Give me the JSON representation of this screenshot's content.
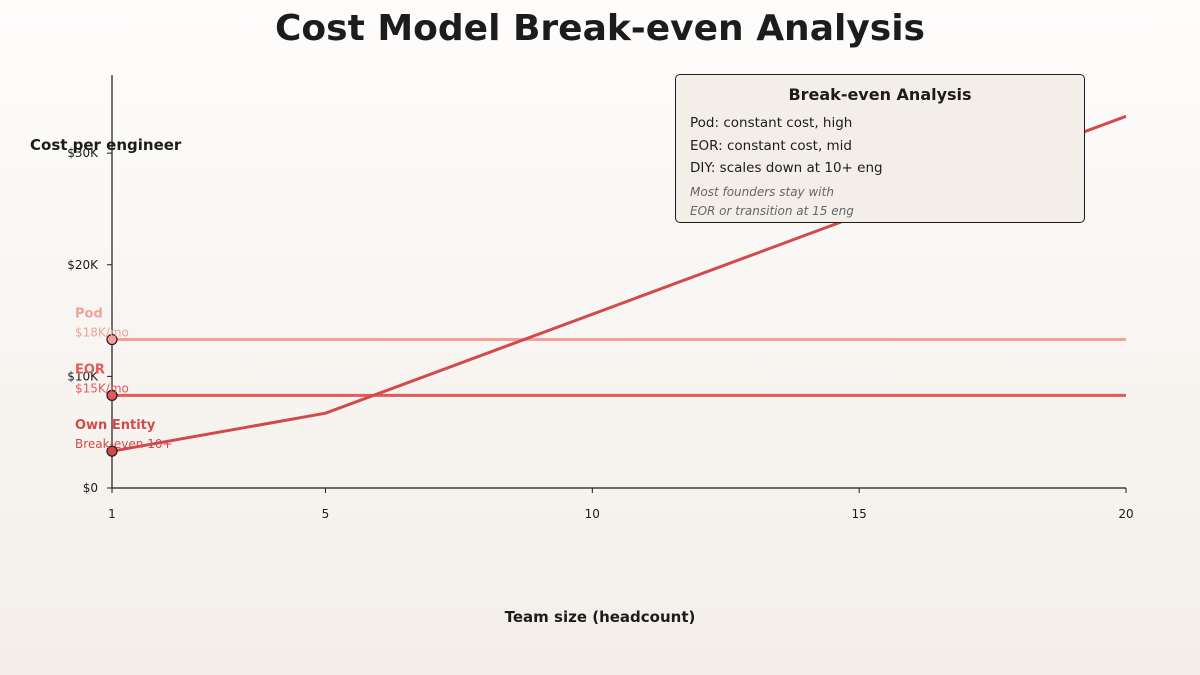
{
  "title": "Cost Model Break-even Analysis",
  "chart_data": {
    "type": "line",
    "xlabel": "Team size (headcount)",
    "ylabel": "Cost per engineer",
    "xlim": [
      1,
      20
    ],
    "ylim": [
      0,
      37000
    ],
    "x_ticks": [
      1,
      5,
      10,
      15,
      20
    ],
    "x_tick_labels": [
      "1",
      "5",
      "10",
      "15",
      "20"
    ],
    "y_ticks": [
      0,
      10000,
      20000,
      30000
    ],
    "y_tick_labels": [
      "$0",
      "$10K",
      "$20K",
      "$30K"
    ],
    "series": [
      {
        "name": "Pod",
        "sublabel": "$18K/mo",
        "color": "#f4a09a",
        "x": [
          1,
          20
        ],
        "y": [
          13300,
          13300
        ]
      },
      {
        "name": "EOR",
        "sublabel": "$15K/mo",
        "color": "#e05a5e",
        "x": [
          1,
          20
        ],
        "y": [
          8300,
          8300
        ]
      },
      {
        "name": "Own Entity",
        "sublabel": "Break-even 10+",
        "color": "#d24a4c",
        "x": [
          1,
          5,
          20
        ],
        "y": [
          3300,
          6700,
          33300
        ]
      }
    ],
    "legend": {
      "title": "Break-even Analysis",
      "lines": [
        "Pod: constant cost, high",
        "EOR: constant cost, mid",
        "DIY: scales down at 10+ eng"
      ],
      "note": [
        "Most founders stay with",
        "EOR or transition at 15 eng"
      ],
      "placement": "top-right"
    }
  }
}
